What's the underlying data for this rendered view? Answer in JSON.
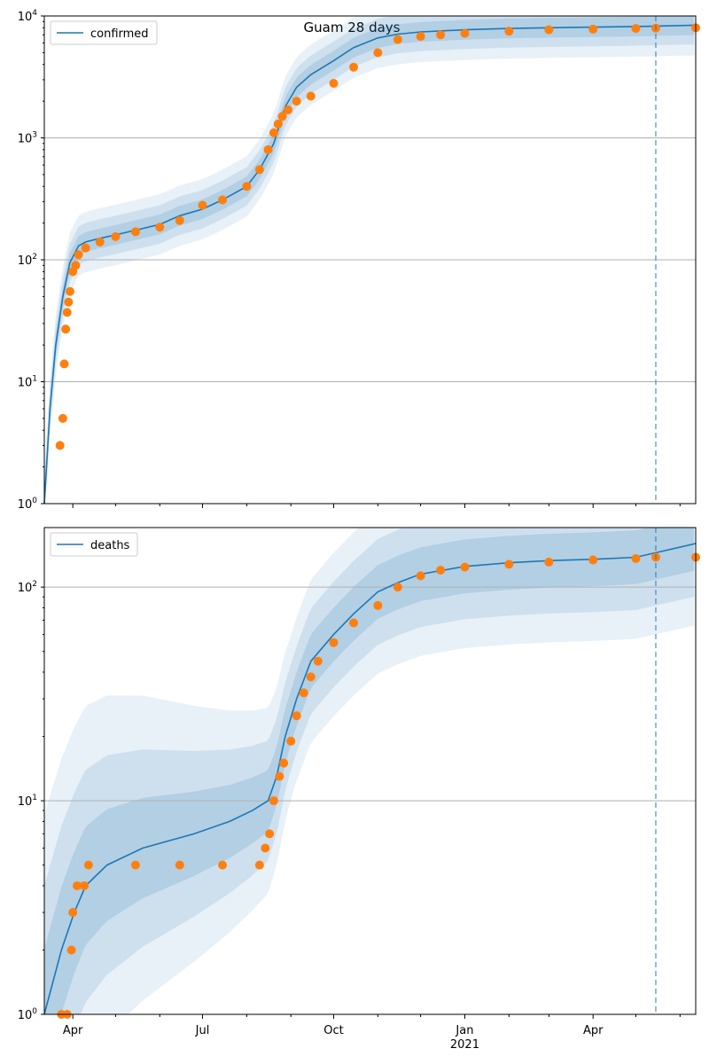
{
  "figure": {
    "title": "Guam 28 days"
  },
  "colors": {
    "model": "#1f77b4",
    "observed": "#ff7f0e",
    "band": "#1f77b4",
    "grid": "#b0b0b0"
  },
  "axis": {
    "x_tick_labels": [
      "Apr",
      "Jul",
      "Oct",
      "Jan",
      "Apr"
    ],
    "x_year_label": "2021",
    "x_range": [
      "2020-03-12",
      "2021-06-12"
    ],
    "forecast_start": "2021-05-15"
  },
  "chart_data": [
    {
      "type": "line",
      "title": "Guam 28 days",
      "legend": "confirmed",
      "legend_position": "top-left",
      "yscale": "log",
      "ylim": [
        1,
        10000
      ],
      "y_tick_labels": [
        "10^0",
        "10^1",
        "10^2",
        "10^3",
        "10^4"
      ],
      "grid": "y",
      "series": [
        {
          "name": "confirmed",
          "kind": "model",
          "x": [
            "2020-03-12",
            "2020-03-16",
            "2020-03-20",
            "2020-03-25",
            "2020-03-30",
            "2020-04-05",
            "2020-04-10",
            "2020-04-20",
            "2020-05-01",
            "2020-05-15",
            "2020-06-01",
            "2020-06-15",
            "2020-07-01",
            "2020-07-15",
            "2020-08-01",
            "2020-08-10",
            "2020-08-20",
            "2020-08-28",
            "2020-09-05",
            "2020-09-15",
            "2020-10-01",
            "2020-10-15",
            "2020-11-01",
            "2020-11-15",
            "2020-12-01",
            "2021-01-01",
            "2021-02-01",
            "2021-03-01",
            "2021-04-01",
            "2021-05-01",
            "2021-06-12"
          ],
          "y": [
            1,
            6,
            20,
            50,
            95,
            130,
            140,
            150,
            160,
            175,
            195,
            230,
            260,
            310,
            400,
            550,
            900,
            1800,
            2600,
            3300,
            4300,
            5500,
            6600,
            7100,
            7400,
            7700,
            7900,
            8000,
            8100,
            8200,
            8400
          ]
        },
        {
          "name": "observed",
          "kind": "points",
          "x": [
            "2020-03-23",
            "2020-03-25",
            "2020-03-26",
            "2020-03-27",
            "2020-03-28",
            "2020-03-29",
            "2020-03-30",
            "2020-04-01",
            "2020-04-03",
            "2020-04-05",
            "2020-04-10",
            "2020-04-20",
            "2020-05-01",
            "2020-05-15",
            "2020-06-01",
            "2020-06-15",
            "2020-07-01",
            "2020-07-15",
            "2020-08-01",
            "2020-08-10",
            "2020-08-16",
            "2020-08-20",
            "2020-08-23",
            "2020-08-26",
            "2020-08-30",
            "2020-09-05",
            "2020-09-15",
            "2020-10-01",
            "2020-10-15",
            "2020-11-01",
            "2020-11-15",
            "2020-12-01",
            "2020-12-15",
            "2021-01-01",
            "2021-02-01",
            "2021-03-01",
            "2021-04-01",
            "2021-05-01",
            "2021-05-15",
            "2021-06-12"
          ],
          "y": [
            3,
            5,
            14,
            27,
            37,
            45,
            55,
            80,
            90,
            110,
            125,
            140,
            155,
            170,
            185,
            210,
            280,
            310,
            400,
            550,
            800,
            1100,
            1300,
            1500,
            1700,
            2000,
            2200,
            2800,
            3800,
            5000,
            6400,
            6800,
            7000,
            7200,
            7500,
            7700,
            7800,
            7900,
            7950,
            8000
          ]
        }
      ]
    },
    {
      "type": "line",
      "legend": "deaths",
      "legend_position": "top-left",
      "yscale": "log",
      "ylim": [
        1,
        190
      ],
      "y_tick_labels": [
        "10^0",
        "10^1",
        "10^2"
      ],
      "grid": "y",
      "series": [
        {
          "name": "deaths",
          "kind": "model",
          "x": [
            "2020-03-12",
            "2020-03-24",
            "2020-04-02",
            "2020-04-10",
            "2020-04-25",
            "2020-05-20",
            "2020-06-25",
            "2020-07-20",
            "2020-08-05",
            "2020-08-16",
            "2020-08-22",
            "2020-08-28",
            "2020-09-05",
            "2020-09-15",
            "2020-10-01",
            "2020-10-15",
            "2020-11-01",
            "2020-11-15",
            "2020-12-01",
            "2021-01-01",
            "2021-02-01",
            "2021-03-01",
            "2021-04-01",
            "2021-05-01",
            "2021-06-12"
          ],
          "y": [
            1,
            2,
            3,
            4,
            5,
            6,
            7,
            8,
            9,
            10,
            13,
            20,
            30,
            45,
            60,
            75,
            95,
            105,
            115,
            125,
            130,
            133,
            135,
            138,
            160
          ]
        },
        {
          "name": "observed",
          "kind": "points",
          "x": [
            "2020-03-24",
            "2020-03-28",
            "2020-03-31",
            "2020-04-01",
            "2020-04-04",
            "2020-04-09",
            "2020-04-12",
            "2020-05-15",
            "2020-06-15",
            "2020-07-15",
            "2020-08-10",
            "2020-08-14",
            "2020-08-17",
            "2020-08-20",
            "2020-08-24",
            "2020-08-27",
            "2020-09-01",
            "2020-09-05",
            "2020-09-10",
            "2020-09-15",
            "2020-09-20",
            "2020-10-01",
            "2020-10-15",
            "2020-11-01",
            "2020-11-15",
            "2020-12-01",
            "2020-12-15",
            "2021-01-01",
            "2021-02-01",
            "2021-03-01",
            "2021-04-01",
            "2021-05-01",
            "2021-05-15",
            "2021-06-12"
          ],
          "y": [
            1,
            1,
            2,
            3,
            4,
            4,
            5,
            5,
            5,
            5,
            5,
            6,
            7,
            10,
            13,
            15,
            19,
            25,
            32,
            38,
            45,
            55,
            68,
            82,
            100,
            113,
            120,
            124,
            128,
            131,
            134,
            136,
            138,
            138
          ]
        }
      ]
    }
  ]
}
